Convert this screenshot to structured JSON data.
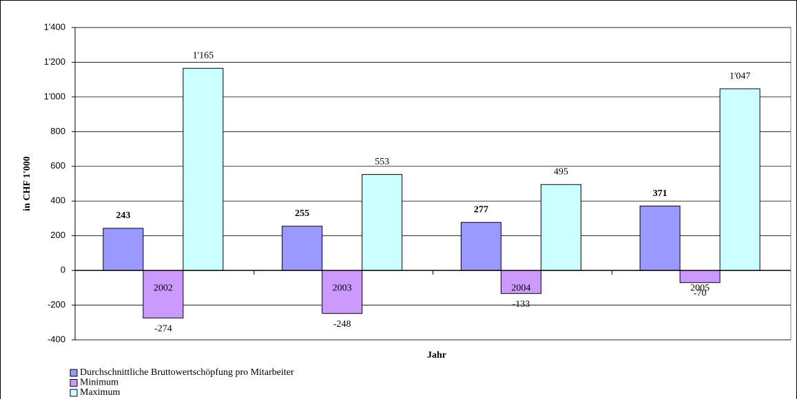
{
  "chart_data": {
    "type": "bar",
    "x_label": "Jahr",
    "y_label": "in CHF 1'000",
    "categories": [
      "2002",
      "2003",
      "2004",
      "2005"
    ],
    "series": [
      {
        "name": "Durchschnittliche Bruttowertschöpfung pro Mitarbeiter",
        "color": "#9999ff",
        "values": [
          243,
          255,
          277,
          371
        ]
      },
      {
        "name": "Minimum",
        "color": "#cc99ff",
        "values": [
          -274,
          -248,
          -133,
          -70
        ]
      },
      {
        "name": "Maximum",
        "color": "#ccffff",
        "values": [
          1165,
          553,
          495,
          1047
        ],
        "value_labels": [
          "1'165",
          "553",
          "495",
          "1'047"
        ]
      }
    ],
    "ylim": [
      -400,
      1400
    ],
    "yticks": [
      -400,
      -200,
      0,
      200,
      400,
      600,
      800,
      {
        "value": 1000,
        "label": "1'000"
      },
      {
        "value": 1200,
        "label": "1'200"
      },
      {
        "value": 1400,
        "label": "1'400"
      }
    ],
    "grid": true,
    "legend": "bottom-left"
  }
}
